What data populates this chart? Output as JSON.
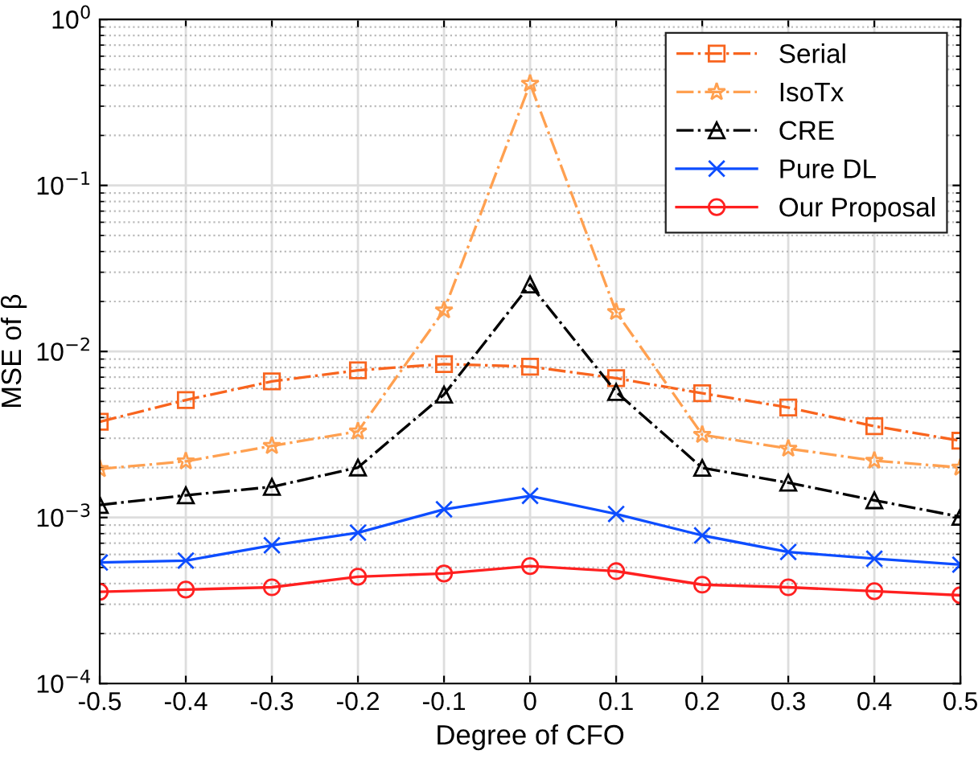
{
  "chart_data": {
    "type": "line",
    "xlabel": "Degree of CFO",
    "ylabel": "MSE of β",
    "x": [
      -0.5,
      -0.4,
      -0.3,
      -0.2,
      -0.1,
      0,
      0.1,
      0.2,
      0.3,
      0.4,
      0.5
    ],
    "series": [
      {
        "name": "Serial",
        "color": "#f8641e",
        "marker": "square",
        "line_style": "dashdot",
        "values": [
          0.00377,
          0.0051,
          0.0066,
          0.0077,
          0.0084,
          0.0081,
          0.0069,
          0.0056,
          0.0046,
          0.00355,
          0.0029
        ]
      },
      {
        "name": "IsoTx",
        "color": "#ffa050",
        "marker": "star",
        "line_style": "dashdot",
        "values": [
          0.00196,
          0.00218,
          0.0027,
          0.0033,
          0.0177,
          0.41,
          0.0173,
          0.00315,
          0.0026,
          0.0022,
          0.002
        ]
      },
      {
        "name": "CRE",
        "color": "#000000",
        "marker": "triangle",
        "line_style": "dashdot",
        "values": [
          0.00119,
          0.00136,
          0.00153,
          0.002,
          0.0055,
          0.0253,
          0.0057,
          0.00199,
          0.00162,
          0.00127,
          0.00101
        ]
      },
      {
        "name": "Pure DL",
        "color": "#0d4dff",
        "marker": "cross",
        "line_style": "solid",
        "values": [
          0.000536,
          0.00055,
          0.00068,
          0.00081,
          0.00112,
          0.00135,
          0.00105,
          0.00078,
          0.00062,
          0.000565,
          0.00052
        ]
      },
      {
        "name": "Our Proposal",
        "color": "#ff2020",
        "marker": "circle",
        "line_style": "solid",
        "values": [
          0.000357,
          0.000368,
          0.00038,
          0.00044,
          0.00046,
          0.00051,
          0.000475,
          0.000394,
          0.00038,
          0.00036,
          0.00034
        ]
      }
    ],
    "log": "y",
    "xlim": [
      -0.5,
      0.5
    ],
    "ylim": [
      0.0001,
      1
    ],
    "xticks": [
      -0.5,
      -0.4,
      -0.3,
      -0.2,
      -0.1,
      0,
      0.1,
      0.2,
      0.3,
      0.4,
      0.5
    ],
    "yticks": [
      {
        "value": 0.0001,
        "label": "10$^{−4}$"
      },
      {
        "value": 0.001,
        "label": "10$^{−3}$"
      },
      {
        "value": 0.01,
        "label": "10$^{−2}$"
      },
      {
        "value": 0.1,
        "label": "10$^{−1}$"
      },
      {
        "value": 1,
        "label": "10$^{0}$"
      }
    ],
    "grid": true,
    "legend": "top right"
  }
}
